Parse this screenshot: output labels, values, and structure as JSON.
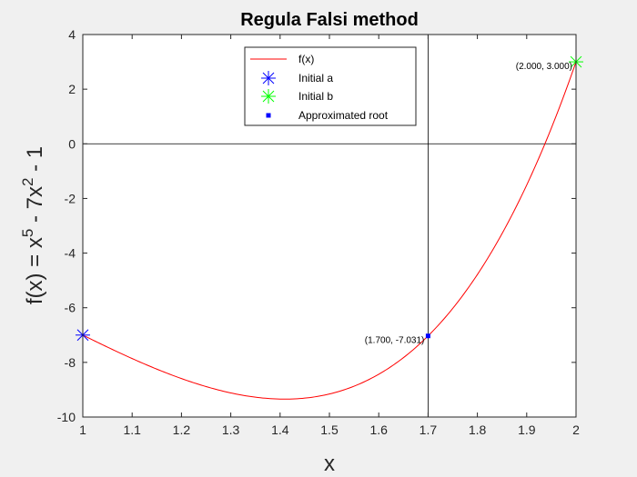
{
  "chart_data": {
    "type": "line",
    "title": "Regula Falsi method",
    "xlabel": "x",
    "ylabel_parts": {
      "prefix": "f(x) = x",
      "exp1": "5",
      "middle": " - 7x",
      "exp2": "2",
      "suffix": " - 1"
    },
    "xlim": [
      1,
      2
    ],
    "ylim": [
      -10,
      4
    ],
    "xticks": [
      1,
      1.1,
      1.2,
      1.3,
      1.4,
      1.5,
      1.6,
      1.7,
      1.8,
      1.9,
      2
    ],
    "xtick_labels": [
      "1",
      "1.1",
      "1.2",
      "1.3",
      "1.4",
      "1.5",
      "1.6",
      "1.7",
      "1.8",
      "1.9",
      "2"
    ],
    "yticks": [
      -10,
      -8,
      -6,
      -4,
      -2,
      0,
      2,
      4
    ],
    "ytick_labels": [
      "-10",
      "-8",
      "-6",
      "-4",
      "-2",
      "0",
      "2",
      "4"
    ],
    "grid": false,
    "legend_position": "top-center",
    "series": [
      {
        "name": "f(x)",
        "kind": "line",
        "color": "#ff0000",
        "function": "x^5 - 7x^2 - 1"
      },
      {
        "name": "Initial a",
        "kind": "marker",
        "marker": "asterisk",
        "color": "#0000ff",
        "x": [
          1
        ],
        "y": [
          -7
        ]
      },
      {
        "name": "Initial b",
        "kind": "marker",
        "marker": "asterisk",
        "color": "#00ff00",
        "x": [
          2
        ],
        "y": [
          3
        ]
      },
      {
        "name": "Approximated root",
        "kind": "marker",
        "marker": "square",
        "color": "#0000ff",
        "x": [
          1.7
        ],
        "y": [
          -7.031
        ]
      }
    ],
    "reference_lines": [
      {
        "orientation": "horizontal",
        "value": 0,
        "color": "#000000"
      },
      {
        "orientation": "vertical",
        "value": 1.7,
        "color": "#000000"
      }
    ],
    "annotations": [
      {
        "text": "(1.700, -7.031)",
        "x": 1.7,
        "y": -7.031,
        "anchor": "end"
      },
      {
        "text": "(2.000, 3.000)",
        "x": 2.0,
        "y": 3.0,
        "anchor": "end"
      }
    ]
  }
}
